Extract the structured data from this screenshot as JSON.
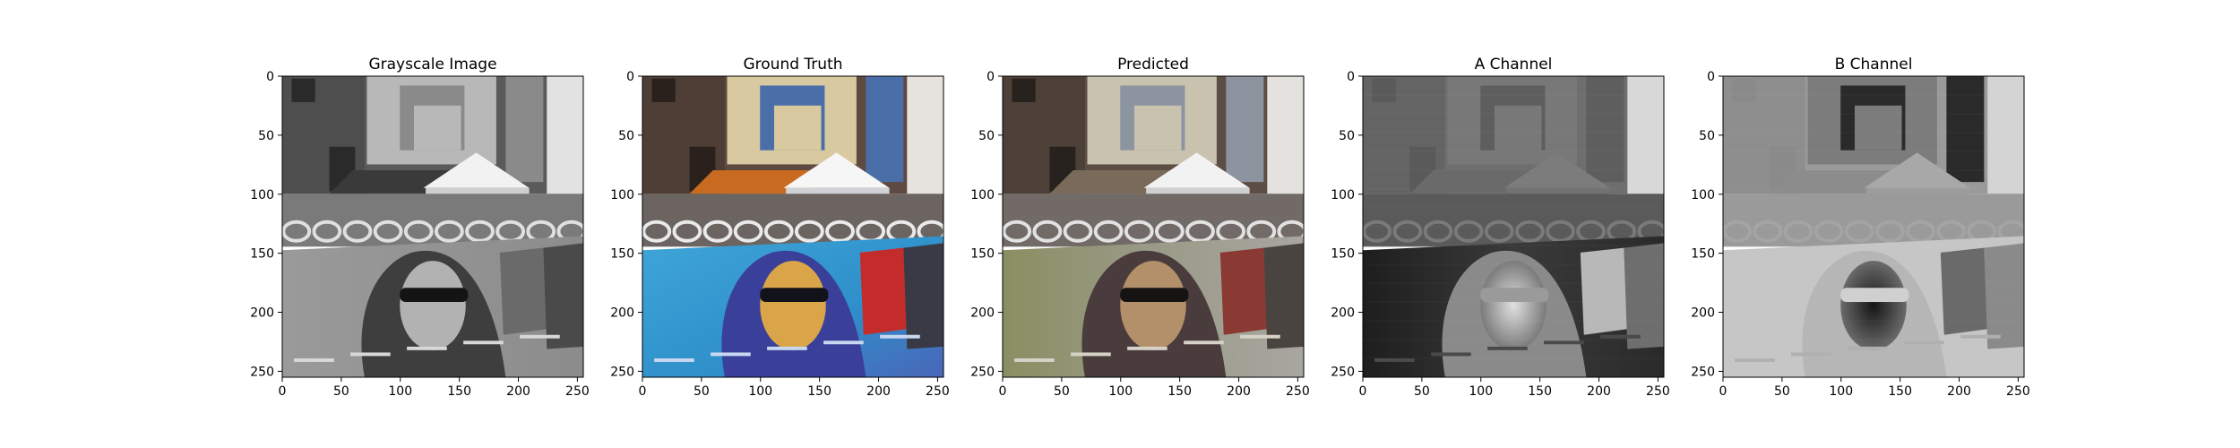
{
  "figure": {
    "background": "#ffffff"
  },
  "chart_data": [
    {
      "type": "heatmap",
      "title": "Grayscale Image",
      "render": "grayscale",
      "xlim": [
        0,
        255
      ],
      "ylim": [
        255,
        0
      ],
      "xticks": [
        0,
        50,
        100,
        150,
        200,
        250
      ],
      "yticks": [
        0,
        50,
        100,
        150,
        200,
        250
      ],
      "xlabel": "",
      "ylabel": "",
      "grid": false
    },
    {
      "type": "heatmap",
      "title": "Ground Truth",
      "render": "color",
      "xlim": [
        0,
        255
      ],
      "ylim": [
        255,
        0
      ],
      "xticks": [
        0,
        50,
        100,
        150,
        200,
        250
      ],
      "yticks": [
        0,
        50,
        100,
        150,
        200,
        250
      ],
      "xlabel": "",
      "ylabel": "",
      "grid": false
    },
    {
      "type": "heatmap",
      "title": "Predicted",
      "render": "muted-color",
      "xlim": [
        0,
        255
      ],
      "ylim": [
        255,
        0
      ],
      "xticks": [
        0,
        50,
        100,
        150,
        200,
        250
      ],
      "yticks": [
        0,
        50,
        100,
        150,
        200,
        250
      ],
      "xlabel": "",
      "ylabel": "",
      "grid": false
    },
    {
      "type": "heatmap",
      "title": "A Channel",
      "render": "channel-a",
      "xlim": [
        0,
        255
      ],
      "ylim": [
        255,
        0
      ],
      "xticks": [
        0,
        50,
        100,
        150,
        200,
        250
      ],
      "yticks": [
        0,
        50,
        100,
        150,
        200,
        250
      ],
      "xlabel": "",
      "ylabel": "",
      "grid": false
    },
    {
      "type": "heatmap",
      "title": "B Channel",
      "render": "channel-b",
      "xlim": [
        0,
        255
      ],
      "ylim": [
        255,
        0
      ],
      "xticks": [
        0,
        50,
        100,
        150,
        200,
        250
      ],
      "yticks": [
        0,
        50,
        100,
        150,
        200,
        250
      ],
      "xlabel": "",
      "ylabel": "",
      "grid": false
    }
  ]
}
